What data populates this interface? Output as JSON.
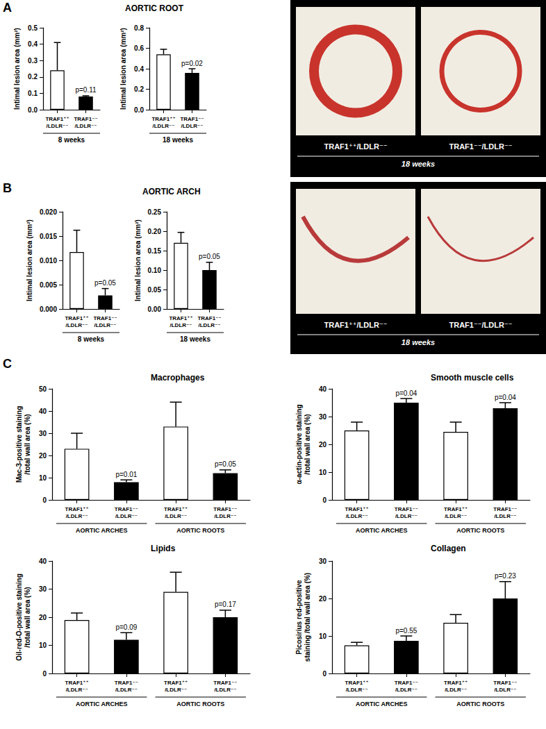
{
  "figure": {
    "panel_labels": [
      "A",
      "B",
      "C"
    ],
    "micrographs": [
      {
        "labels": [
          "TRAF1⁺⁺/LDLR⁻⁻",
          "TRAF1⁻⁻/LDLR⁻⁻"
        ],
        "caption": "18 weeks"
      },
      {
        "labels": [
          "TRAF1⁺⁺/LDLR⁻⁻",
          "TRAF1⁻⁻/LDLR⁻⁻"
        ],
        "caption": "18 weeks"
      }
    ]
  },
  "chart_data": [
    {
      "type": "bar",
      "title": "AORTIC ROOT",
      "ylabel": "Intimal lesion area (mm²)",
      "xlabel": "8 weeks",
      "categories": [
        "TRAF1⁺⁺\n/LDLR⁻⁻",
        "TRAF1⁻⁻\n/LDLR⁻⁻"
      ],
      "values": [
        0.24,
        0.08
      ],
      "errors": [
        0.17,
        0.005
      ],
      "colors": [
        "#ffffff",
        "#000000"
      ],
      "annotations": [
        null,
        "p=0.11"
      ],
      "ylim": [
        0,
        0.5
      ],
      "yticks": [
        {
          "value": 0,
          "label": "0.0"
        },
        0.1,
        0.2,
        0.3,
        0.4,
        0.5
      ],
      "grid": false
    },
    {
      "type": "bar",
      "ylabel": "Intimal lesion area (mm²)",
      "xlabel": "18 weeks",
      "categories": [
        "TRAF1⁺⁺\n/LDLR⁻⁻",
        "TRAF1⁻⁻\n/LDLR⁻⁻"
      ],
      "values": [
        0.54,
        0.36
      ],
      "errors": [
        0.05,
        0.04
      ],
      "colors": [
        "#ffffff",
        "#000000"
      ],
      "annotations": [
        null,
        "p=0.02"
      ],
      "ylim": [
        0,
        0.8
      ],
      "yticks": [
        {
          "value": 0,
          "label": "0.0"
        },
        0.2,
        0.4,
        0.6,
        0.8
      ],
      "grid": false
    },
    {
      "type": "bar",
      "title": "AORTIC ARCH",
      "ylabel": "Intimal lesion area (mm²)",
      "xlabel": "8 weeks",
      "categories": [
        "TRAF1⁺⁺\n/LDLR⁻⁻",
        "TRAF1⁻⁻\n/LDLR⁻⁻"
      ],
      "values": [
        0.0117,
        0.0028
      ],
      "errors": [
        0.0045,
        0.0014
      ],
      "colors": [
        "#ffffff",
        "#000000"
      ],
      "annotations": [
        null,
        "p=0.05"
      ],
      "ylim": [
        0,
        0.02
      ],
      "yticks": [
        {
          "value": 0,
          "label": "0.000"
        },
        {
          "value": 0.005,
          "label": "0.005"
        },
        {
          "value": 0.01,
          "label": "0.010"
        },
        {
          "value": 0.015,
          "label": "0.015"
        },
        {
          "value": 0.02,
          "label": "0.020"
        }
      ],
      "grid": false
    },
    {
      "type": "bar",
      "ylabel": "Intimal lesion area (mm²)",
      "xlabel": "18 weeks",
      "categories": [
        "TRAF1⁺⁺\n/LDLR⁻⁻",
        "TRAF1⁻⁻\n/LDLR⁻⁻"
      ],
      "values": [
        0.17,
        0.1
      ],
      "errors": [
        0.027,
        0.02
      ],
      "colors": [
        "#ffffff",
        "#000000"
      ],
      "annotations": [
        null,
        "p=0.05"
      ],
      "ylim": [
        0,
        0.25
      ],
      "yticks": [
        {
          "value": 0,
          "label": "0.00"
        },
        0.05,
        {
          "value": 0.1,
          "label": "0.10"
        },
        0.15,
        {
          "value": 0.2,
          "label": "0.20"
        },
        0.25
      ],
      "grid": false
    },
    {
      "type": "bar",
      "title": "Macrophages",
      "ylabel": "Mac-3-positive staining\n/total wall area (%)",
      "groups": [
        "AORTIC ARCHES",
        "AORTIC ROOTS"
      ],
      "categories": [
        "TRAF1⁺⁺\n/LDLR⁻⁻",
        "TRAF1⁻⁻\n/LDLR⁻⁻",
        "TRAF1⁺⁺\n/LDLR⁻⁻",
        "TRAF1⁻⁻\n/LDLR⁻⁻"
      ],
      "values": [
        23,
        8,
        33,
        12
      ],
      "errors": [
        7,
        1,
        11,
        1.5
      ],
      "colors": [
        "#ffffff",
        "#000000",
        "#ffffff",
        "#000000"
      ],
      "annotations": [
        null,
        "p=0.01",
        null,
        "p=0.05"
      ],
      "ylim": [
        0,
        50
      ],
      "yticks": [
        0,
        10,
        20,
        30,
        40,
        50
      ],
      "grid": false
    },
    {
      "type": "bar",
      "title": "Smooth muscle cells",
      "ylabel": "α-actin-positive staining\n/total wall area (%)",
      "groups": [
        "AORTIC ARCHES",
        "AORTIC ROOTS"
      ],
      "categories": [
        "TRAF1⁺⁺\n/LDLR⁻⁻",
        "TRAF1⁻⁻\n/LDLR⁻⁻",
        "TRAF1⁺⁺\n/LDLR⁻⁻",
        "TRAF1⁻⁻\n/LDLR⁻⁻"
      ],
      "values": [
        25,
        35,
        24.5,
        33
      ],
      "errors": [
        3,
        1.5,
        3.5,
        2
      ],
      "colors": [
        "#ffffff",
        "#000000",
        "#ffffff",
        "#000000"
      ],
      "annotations": [
        null,
        "p=0.04",
        null,
        "p=0.04"
      ],
      "ylim": [
        0,
        40
      ],
      "yticks": [
        0,
        10,
        20,
        30,
        40
      ],
      "grid": false
    },
    {
      "type": "bar",
      "title": "Lipids",
      "ylabel": "Oil-red-O-positive staining\n/total wall area (%)",
      "groups": [
        "AORTIC ARCHES",
        "AORTIC ROOTS"
      ],
      "categories": [
        "TRAF1⁺⁺\n/LDLR⁻⁻",
        "TRAF1⁻⁻\n/LDLR⁻⁻",
        "TRAF1⁺⁺\n/LDLR⁻⁻",
        "TRAF1⁻⁻\n/LDLR⁻⁻"
      ],
      "values": [
        19,
        12,
        29,
        20
      ],
      "errors": [
        2.5,
        2.5,
        7,
        2.5
      ],
      "colors": [
        "#ffffff",
        "#000000",
        "#ffffff",
        "#000000"
      ],
      "annotations": [
        null,
        "p=0.09",
        null,
        "p=0.17"
      ],
      "ylim": [
        0,
        40
      ],
      "yticks": [
        0,
        10,
        20,
        30,
        40
      ],
      "grid": false
    },
    {
      "type": "bar",
      "title": "Collagen",
      "ylabel": "Picosirius red-positive\nstaining /total wall area (%)",
      "groups": [
        "AORTIC ARCHES",
        "AORTIC ROOTS"
      ],
      "categories": [
        "TRAF1⁺⁺\n/LDLR⁻⁻",
        "TRAF1⁻⁻\n/LDLR⁻⁻",
        "TRAF1⁺⁺\n/LDLR⁻⁻",
        "TRAF1⁻⁻\n/LDLR⁻⁻"
      ],
      "values": [
        7.5,
        8.7,
        13.5,
        20
      ],
      "errors": [
        0.8,
        1.3,
        2.2,
        4.5
      ],
      "colors": [
        "#ffffff",
        "#000000",
        "#ffffff",
        "#000000"
      ],
      "annotations": [
        null,
        "p=0.55",
        null,
        "p=0.23"
      ],
      "ylim": [
        0,
        30
      ],
      "yticks": [
        0,
        10,
        20,
        30
      ],
      "grid": false
    }
  ]
}
